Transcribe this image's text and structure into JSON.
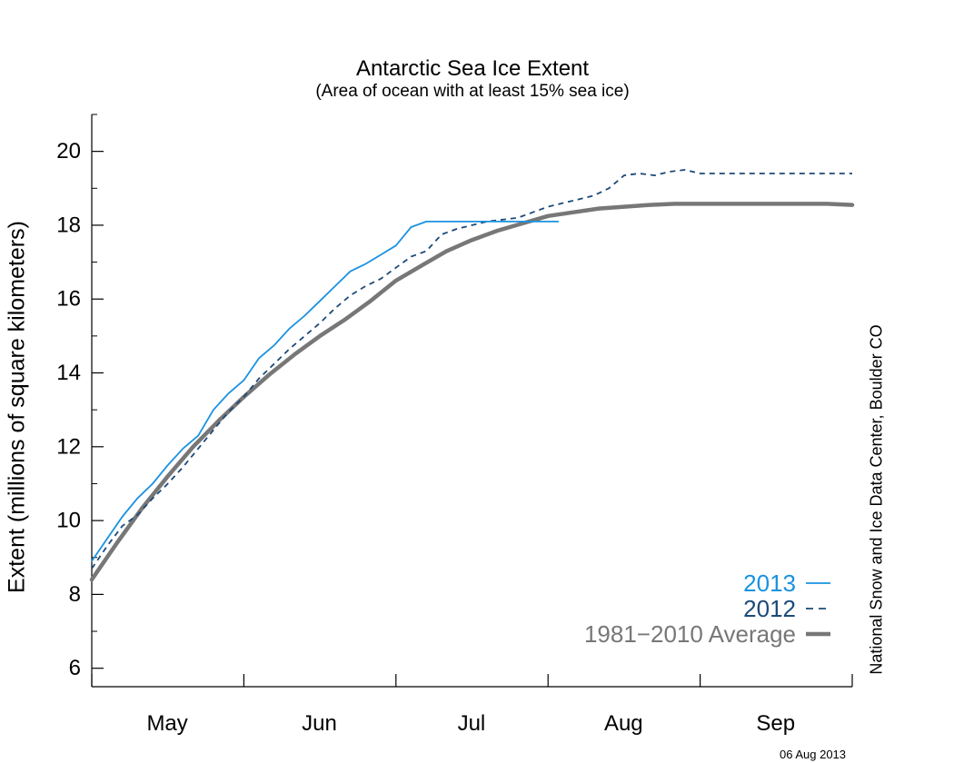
{
  "chart_data": {
    "type": "line",
    "title": "Antarctic Sea Ice Extent",
    "subtitle": "(Area of ocean with at least 15% sea ice)",
    "ylabel": "Extent (millions of square kilometers)",
    "xlabel": "",
    "ylim": [
      5.5,
      21
    ],
    "yticks": [
      6,
      8,
      10,
      12,
      14,
      16,
      18,
      20
    ],
    "xlim": [
      1,
      151
    ],
    "month_ticks": [
      1,
      31,
      61,
      91,
      121
    ],
    "month_labels": [
      {
        "label": "May",
        "x": 15
      },
      {
        "label": "Jun",
        "x": 45
      },
      {
        "label": "Jul",
        "x": 75
      },
      {
        "label": "Aug",
        "x": 105
      },
      {
        "label": "Sep",
        "x": 135
      }
    ],
    "legend_position": "bottom-right",
    "series": [
      {
        "name": "2013",
        "color": "#1a92e0",
        "style": "solid",
        "x": [
          1,
          4,
          7,
          10,
          13,
          16,
          19,
          22,
          25,
          28,
          31,
          34,
          37,
          40,
          43,
          46,
          49,
          52,
          55,
          58,
          61,
          64,
          67,
          70,
          73,
          76,
          79,
          82,
          85,
          88,
          91,
          93
        ],
        "y": [
          8.9,
          9.5,
          10.1,
          10.6,
          11.0,
          11.5,
          11.95,
          12.3,
          13.0,
          13.45,
          13.8,
          14.4,
          14.75,
          15.2,
          15.55,
          15.95,
          16.35,
          16.75,
          16.95,
          17.2,
          17.45,
          17.95,
          18.1,
          18.1,
          18.1,
          18.1,
          18.1,
          18.1,
          18.1,
          18.1,
          18.1,
          18.1
        ]
      },
      {
        "name": "2012",
        "color": "#1c4a78",
        "style": "dashed",
        "x": [
          1,
          4,
          7,
          10,
          13,
          16,
          19,
          22,
          25,
          28,
          31,
          34,
          37,
          40,
          43,
          46,
          49,
          52,
          55,
          58,
          61,
          64,
          67,
          70,
          73,
          76,
          79,
          82,
          85,
          88,
          91,
          94,
          97,
          100,
          103,
          106,
          109,
          112,
          115,
          118,
          121,
          124,
          127,
          130,
          133,
          136,
          139,
          142,
          145,
          148,
          151
        ],
        "y": [
          8.7,
          9.3,
          9.85,
          10.15,
          10.6,
          11.0,
          11.45,
          11.95,
          12.45,
          12.95,
          13.35,
          13.85,
          14.25,
          14.65,
          15.0,
          15.35,
          15.75,
          16.1,
          16.35,
          16.55,
          16.85,
          17.15,
          17.3,
          17.75,
          17.9,
          18.0,
          18.1,
          18.15,
          18.2,
          18.35,
          18.5,
          18.6,
          18.7,
          18.8,
          19.0,
          19.35,
          19.4,
          19.35,
          19.45,
          19.5,
          19.4,
          19.4,
          19.4,
          19.4,
          19.4,
          19.4,
          19.4,
          19.4,
          19.4,
          19.4,
          19.4
        ]
      },
      {
        "name": "1981−2010 Average",
        "color": "#777777",
        "style": "thick",
        "x": [
          1,
          6,
          11,
          16,
          21,
          26,
          31,
          36,
          41,
          46,
          51,
          56,
          61,
          66,
          71,
          76,
          81,
          86,
          91,
          96,
          101,
          106,
          111,
          116,
          121,
          126,
          131,
          136,
          141,
          146,
          151
        ],
        "y": [
          8.4,
          9.4,
          10.35,
          11.2,
          12.0,
          12.7,
          13.35,
          13.95,
          14.5,
          15.0,
          15.45,
          15.95,
          16.5,
          16.9,
          17.3,
          17.6,
          17.85,
          18.05,
          18.25,
          18.35,
          18.45,
          18.5,
          18.55,
          18.58,
          18.58,
          18.58,
          18.58,
          18.58,
          18.58,
          18.58,
          18.55
        ]
      }
    ]
  },
  "credit": "National Snow and Ice Data Center, Boulder CO",
  "date_stamp": "06 Aug 2013"
}
